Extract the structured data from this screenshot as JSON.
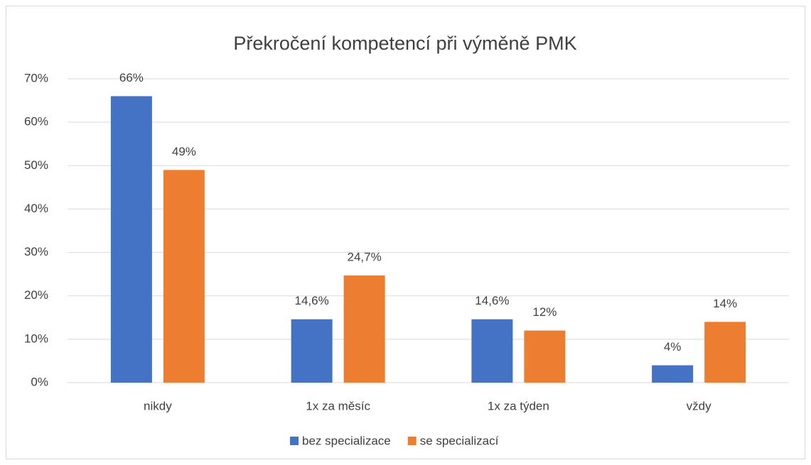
{
  "chart_data": {
    "type": "bar",
    "title": "Překročení kompetencí při výměně PMK",
    "categories": [
      "nikdy",
      "1x za měsíc",
      "1x za týden",
      "vždy"
    ],
    "series": [
      {
        "name": "bez specializace",
        "color": "#4472c4",
        "values": [
          66,
          14.6,
          14.6,
          4
        ],
        "value_labels": [
          "66%",
          "14,6%",
          "14,6%",
          "4%"
        ]
      },
      {
        "name": "se specializací",
        "color": "#ed7d31",
        "values": [
          49,
          24.7,
          12,
          14
        ],
        "value_labels": [
          "49%",
          "24,7%",
          "12%",
          "14%"
        ]
      }
    ],
    "ylim": [
      0,
      70
    ],
    "yticks": [
      {
        "value": 0,
        "label": "0%"
      },
      {
        "value": 10,
        "label": "10%"
      },
      {
        "value": 20,
        "label": "20%"
      },
      {
        "value": 30,
        "label": "30%"
      },
      {
        "value": 40,
        "label": "40%"
      },
      {
        "value": 50,
        "label": "50%"
      },
      {
        "value": 60,
        "label": "60%"
      },
      {
        "value": 70,
        "label": "70%"
      }
    ],
    "grid": true,
    "legend": "bottom"
  }
}
